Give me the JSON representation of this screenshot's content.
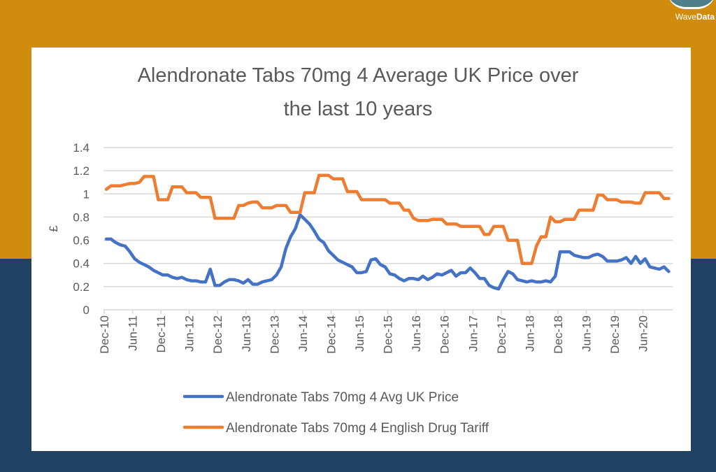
{
  "logo": {
    "text_light": "Wave",
    "text_bold": "Data"
  },
  "colors": {
    "background_top": "#cf8c0d",
    "background_bottom": "#1f4163",
    "series_price": "#4472c4",
    "series_tariff": "#ed7d31"
  },
  "chart_data": {
    "type": "line",
    "title_line1": "Alendronate Tabs 70mg 4 Average UK Price over",
    "title_line2": "the last 10 years",
    "ylabel": "£",
    "xlabel": "",
    "ylim": [
      0,
      1.4
    ],
    "yticks": [
      "0",
      "0.2",
      "0.4",
      "0.6",
      "0.8",
      "1",
      "1.2",
      "1.4"
    ],
    "grid": true,
    "legend_position": "bottom",
    "x_start": "Dec-10",
    "x_frequency": "monthly",
    "xtick_labels": [
      "Dec-10",
      "Jun-11",
      "Dec-11",
      "Jun-12",
      "Dec-12",
      "Jun-13",
      "Dec-13",
      "Jun-14",
      "Dec-14",
      "Jun-15",
      "Dec-15",
      "Jun-16",
      "Dec-16",
      "Jun-17",
      "Dec-17",
      "Jun-18",
      "Dec-18",
      "Jun-19",
      "Dec-19",
      "Jun-20"
    ],
    "series": [
      {
        "name": "Alendronate Tabs 70mg 4 Avg UK Price",
        "color": "#4472c4",
        "values": [
          0.61,
          0.61,
          0.58,
          0.56,
          0.55,
          0.5,
          0.44,
          0.41,
          0.39,
          0.37,
          0.34,
          0.32,
          0.3,
          0.3,
          0.28,
          0.27,
          0.28,
          0.26,
          0.25,
          0.25,
          0.24,
          0.24,
          0.35,
          0.21,
          0.21,
          0.24,
          0.26,
          0.26,
          0.25,
          0.23,
          0.26,
          0.22,
          0.22,
          0.24,
          0.25,
          0.26,
          0.3,
          0.37,
          0.53,
          0.63,
          0.7,
          0.82,
          0.78,
          0.74,
          0.68,
          0.61,
          0.58,
          0.51,
          0.47,
          0.43,
          0.41,
          0.39,
          0.37,
          0.32,
          0.32,
          0.33,
          0.43,
          0.44,
          0.39,
          0.37,
          0.31,
          0.3,
          0.27,
          0.25,
          0.27,
          0.27,
          0.26,
          0.29,
          0.26,
          0.28,
          0.31,
          0.3,
          0.32,
          0.34,
          0.29,
          0.32,
          0.32,
          0.36,
          0.32,
          0.27,
          0.27,
          0.21,
          0.19,
          0.18,
          0.26,
          0.33,
          0.31,
          0.26,
          0.25,
          0.24,
          0.25,
          0.24,
          0.24,
          0.25,
          0.24,
          0.29,
          0.5,
          0.5,
          0.5,
          0.47,
          0.46,
          0.45,
          0.45,
          0.47,
          0.48,
          0.46,
          0.42,
          0.42,
          0.42,
          0.43,
          0.45,
          0.4,
          0.46,
          0.4,
          0.44,
          0.37,
          0.36,
          0.35,
          0.37,
          0.33
        ]
      },
      {
        "name": "Alendronate Tabs 70mg 4 English Drug Tariff",
        "color": "#ed7d31",
        "values": [
          1.04,
          1.07,
          1.07,
          1.07,
          1.08,
          1.09,
          1.09,
          1.1,
          1.15,
          1.15,
          1.15,
          0.95,
          0.95,
          0.95,
          1.06,
          1.06,
          1.06,
          1.01,
          1.01,
          1.01,
          0.97,
          0.97,
          0.97,
          0.79,
          0.79,
          0.79,
          0.79,
          0.79,
          0.9,
          0.9,
          0.92,
          0.93,
          0.93,
          0.88,
          0.88,
          0.88,
          0.9,
          0.9,
          0.9,
          0.84,
          0.84,
          0.84,
          1.01,
          1.01,
          1.01,
          1.16,
          1.16,
          1.16,
          1.13,
          1.13,
          1.13,
          1.02,
          1.02,
          1.02,
          0.95,
          0.95,
          0.95,
          0.95,
          0.95,
          0.95,
          0.92,
          0.92,
          0.92,
          0.86,
          0.86,
          0.79,
          0.77,
          0.77,
          0.77,
          0.78,
          0.78,
          0.78,
          0.74,
          0.74,
          0.74,
          0.72,
          0.72,
          0.72,
          0.72,
          0.72,
          0.65,
          0.65,
          0.72,
          0.72,
          0.72,
          0.6,
          0.6,
          0.6,
          0.4,
          0.4,
          0.4,
          0.55,
          0.63,
          0.63,
          0.8,
          0.76,
          0.76,
          0.78,
          0.78,
          0.78,
          0.86,
          0.86,
          0.86,
          0.86,
          0.99,
          0.99,
          0.95,
          0.95,
          0.95,
          0.93,
          0.93,
          0.93,
          0.92,
          0.92,
          1.01,
          1.01,
          1.01,
          1.01,
          0.96,
          0.96
        ]
      }
    ]
  }
}
